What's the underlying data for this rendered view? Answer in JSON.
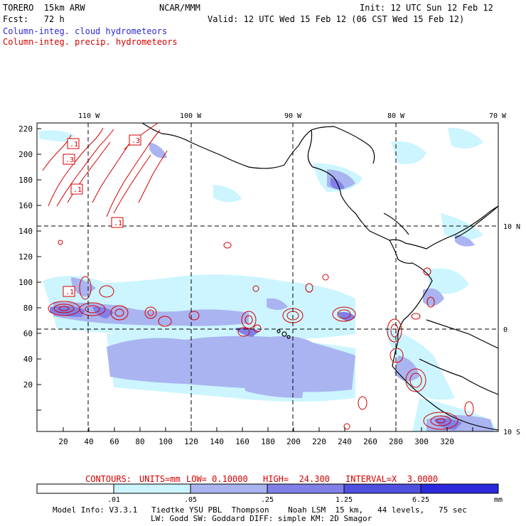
{
  "header": {
    "model": "TORERO  15km ARW",
    "org": "NCAR/MMM",
    "init": "Init: 12 UTC Sun 12 Feb 12",
    "fcst": "Fcst:   72 h",
    "valid": "Valid: 12 UTC Wed 15 Feb 12 (06 CST Wed 15 Feb 12)",
    "field1": "Column-integ. cloud hydrometeors",
    "field2": "Column-integ. precip. hydrometeors"
  },
  "map": {
    "lon_labels": [
      "110 W",
      "100 W",
      "90 W",
      "80 W",
      "70 W"
    ],
    "lat_labels": [
      "10 N",
      "0",
      "10 S"
    ],
    "x_ticks": [
      "20",
      "40",
      "60",
      "80",
      "100",
      "120",
      "140",
      "160",
      "180",
      "200",
      "220",
      "240",
      "260",
      "280",
      "300",
      "320"
    ],
    "y_ticks": [
      "220",
      "200",
      "180",
      "160",
      "140",
      "120",
      "100",
      "80",
      "60",
      "40",
      "20"
    ],
    "box_labels": [
      ".1",
      ".3",
      ".3",
      ".1",
      ".1",
      ".1"
    ]
  },
  "contour_info": {
    "contours": "CONTOURS:",
    "units": "UNITS=mm",
    "low": "LOW= 0.10000",
    "high": "HIGH=  24.300",
    "interval": "INTERVAL=X  3.0000"
  },
  "colorbar": {
    "labels": [
      ".01",
      ".05",
      ".25",
      "1.25",
      "6.25"
    ],
    "unit": "mm",
    "colors": [
      "#ffffff",
      "#ccf5ff",
      "#aab4f0",
      "#8080e8",
      "#5050e0",
      "#2a2adc"
    ]
  },
  "footer": {
    "line1": "Model Info: V3.3.1   Tiedtke YSU PBL  Thompson    Noah LSM  15 km,   44 levels,   75 sec",
    "line2": "LW: Godd SW: Goddard DIFF: simple KM: 2D Smagor"
  }
}
